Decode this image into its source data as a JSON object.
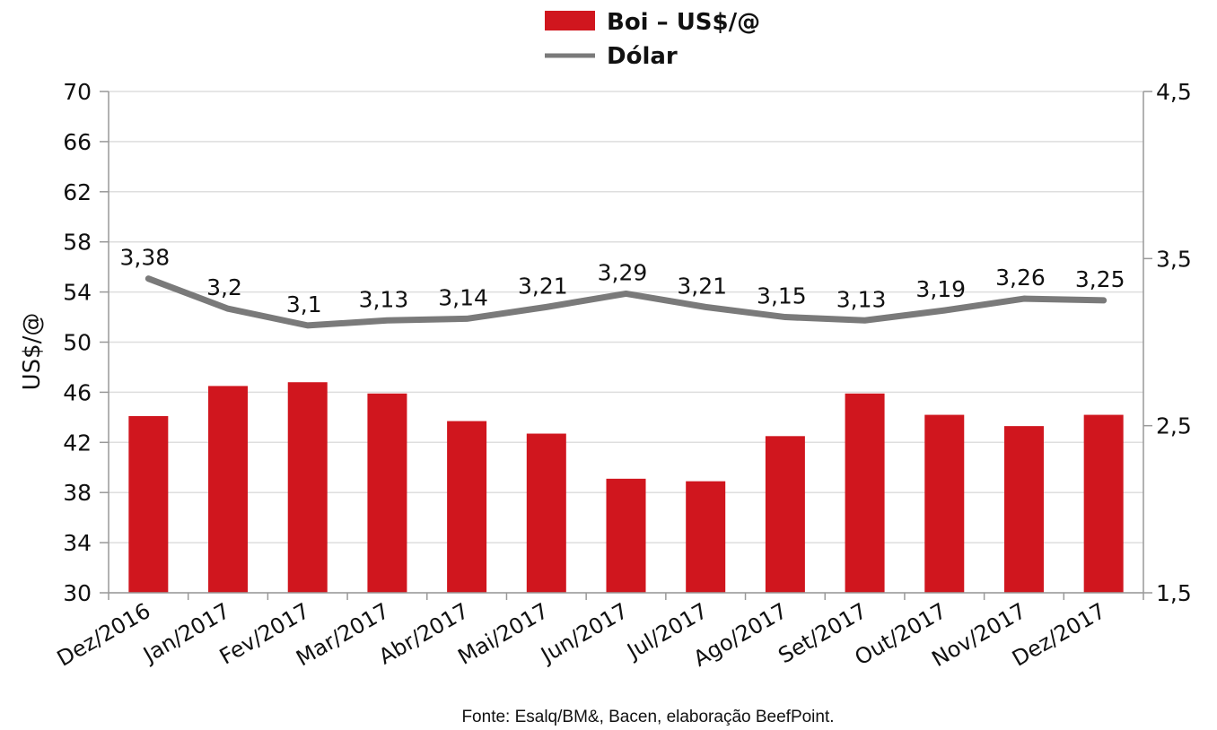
{
  "chart_data": {
    "type": "bar",
    "categories": [
      "Dez/2016",
      "Jan/2017",
      "Fev/2017",
      "Mar/2017",
      "Abr/2017",
      "Mai/2017",
      "Jun/2017",
      "Jul/2017",
      "Ago/2017",
      "Set/2017",
      "Out/2017",
      "Nov/2017",
      "Dez/2017"
    ],
    "series": [
      {
        "name": "Boi – US$/@",
        "type": "bar",
        "axis": "left",
        "color": "#d0161e",
        "values": [
          44.1,
          46.5,
          46.8,
          45.9,
          43.7,
          42.7,
          39.1,
          38.9,
          42.5,
          45.9,
          44.2,
          43.3,
          44.2
        ]
      },
      {
        "name": "Dólar",
        "type": "line",
        "axis": "right",
        "color": "#7a7a7a",
        "values": [
          3.38,
          3.2,
          3.1,
          3.13,
          3.14,
          3.21,
          3.29,
          3.21,
          3.15,
          3.13,
          3.19,
          3.26,
          3.25
        ],
        "labels": [
          "3,38",
          "3,2",
          "3,1",
          "3,13",
          "3,14",
          "3,21",
          "3,29",
          "3,21",
          "3,15",
          "3,13",
          "3,19",
          "3,26",
          "3,25"
        ]
      }
    ],
    "ylabel": "US$/@",
    "ylim": [
      30,
      70
    ],
    "yticks": [
      "30",
      "34",
      "38",
      "42",
      "46",
      "50",
      "54",
      "58",
      "62",
      "66",
      "70"
    ],
    "y2lim": [
      1.5,
      4.5
    ],
    "y2ticks": [
      "1,5",
      "2,5",
      "3,5",
      "4,5"
    ],
    "grid": true,
    "legend_position": "top-center",
    "source_note": "Fonte:  Esalq/BM&,  Bacen,  elaboração  BeefPoint."
  }
}
